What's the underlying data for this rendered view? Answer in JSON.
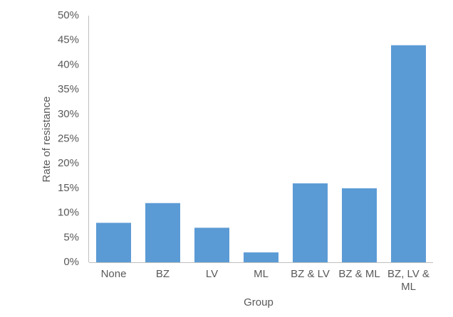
{
  "chart_data": {
    "type": "bar",
    "x_label": "Group",
    "y_label": "Rate of resistance",
    "categories": [
      "None",
      "BZ",
      "LV",
      "ML",
      "BZ & LV",
      "BZ & ML",
      "BZ, LV & ML"
    ],
    "values": [
      8,
      12,
      7,
      2,
      16,
      15,
      44
    ],
    "color": "#5b9bd5",
    "ylim": [
      0,
      50
    ],
    "yticks": [
      {
        "value": 0,
        "label": "0%"
      },
      {
        "value": 5,
        "label": "5%"
      },
      {
        "value": 10,
        "label": "10%"
      },
      {
        "value": 15,
        "label": "15%"
      },
      {
        "value": 20,
        "label": "20%"
      },
      {
        "value": 25,
        "label": "25%"
      },
      {
        "value": 30,
        "label": "30%"
      },
      {
        "value": 35,
        "label": "35%"
      },
      {
        "value": 40,
        "label": "40%"
      },
      {
        "value": 45,
        "label": "45%"
      },
      {
        "value": 50,
        "label": "50%"
      }
    ],
    "grid": false
  }
}
